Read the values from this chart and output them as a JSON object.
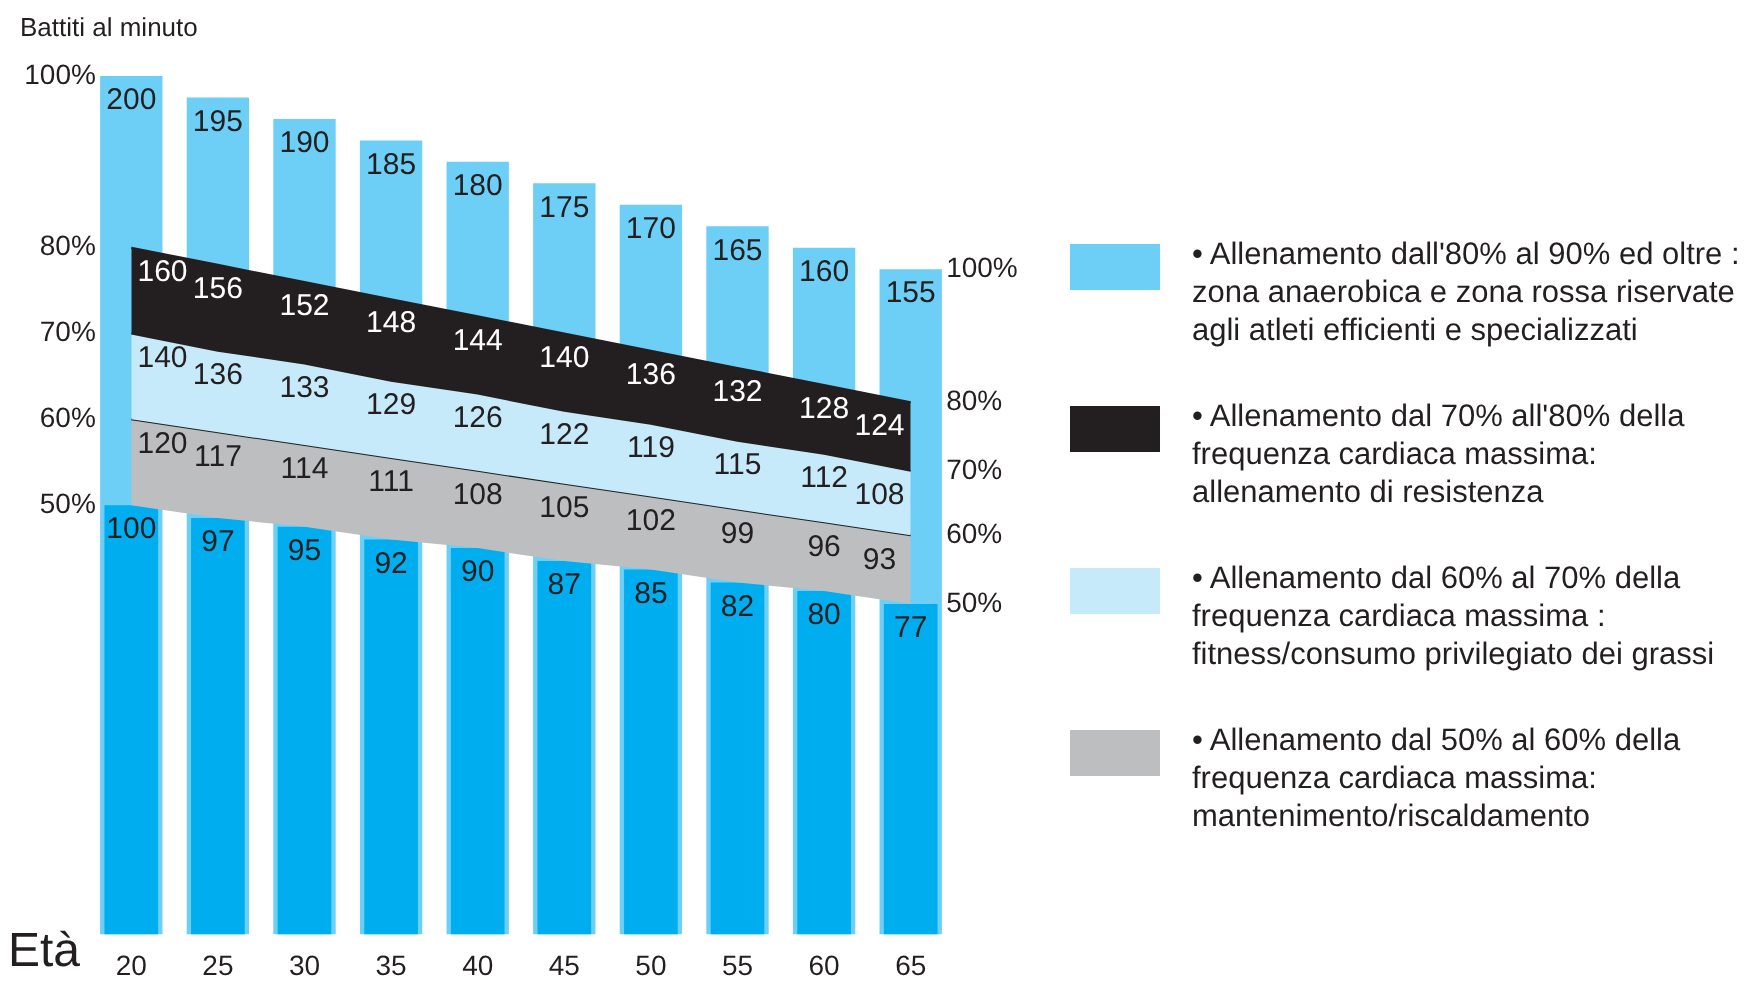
{
  "chart_data": {
    "type": "bar",
    "xlabel": "Età",
    "categories": [
      "20",
      "25",
      "30",
      "35",
      "40",
      "45",
      "50",
      "55",
      "60",
      "65"
    ],
    "series": [
      {
        "name": "• Allenamento dall'80% al 90% ed oltre : zona anaerobica e zona rossa riservate agli atleti efficienti e specializzati",
        "color": "#6dcff6",
        "values": [
          200,
          195,
          190,
          185,
          180,
          175,
          170,
          165,
          160,
          155
        ]
      },
      {
        "name": "• Allenamento dal 70% all'80% della frequenza cardiaca massima: allenamento di resistenza",
        "type": "area",
        "color": "#231f20",
        "values": [
          160,
          156,
          152,
          148,
          144,
          140,
          136,
          132,
          128,
          124
        ]
      },
      {
        "name": "• Allenamento dal 60% al 70% della frequenza cardiaca massima : fitness/consumo privilegiato dei grassi",
        "type": "area",
        "color": "#c7eafb",
        "values": [
          140,
          136,
          133,
          129,
          126,
          122,
          119,
          115,
          112,
          108
        ]
      },
      {
        "name": "• Allenamento dal 50% al 60% della frequenza cardiaca massima: mantenimento/riscaldamento",
        "type": "area",
        "color": "#bcbec0",
        "values": [
          120,
          117,
          114,
          111,
          108,
          105,
          102,
          99,
          96,
          93
        ]
      },
      {
        "color": "#00aeef",
        "values": [
          100,
          97,
          95,
          92,
          90,
          87,
          85,
          82,
          80,
          77
        ]
      }
    ],
    "annotations": [
      "Battiti al minuto",
      {
        "text": "100%",
        "x": "20",
        "y": 200
      },
      {
        "text": "80%",
        "x": "20",
        "y": 160
      },
      {
        "text": "70%",
        "x": "20",
        "y": 140
      },
      {
        "text": "60%",
        "x": "20",
        "y": 120
      },
      {
        "text": "50%",
        "x": "20",
        "y": 100
      },
      {
        "text": "100%",
        "x": "65",
        "y": 155
      },
      {
        "text": "80%",
        "x": "65",
        "y": 124
      },
      {
        "text": "70%",
        "x": "65",
        "y": 108
      },
      {
        "text": "60%",
        "x": "65",
        "y": 93
      },
      {
        "text": "50%",
        "x": "65",
        "y": 77
      }
    ],
    "data_labels": true,
    "grid": false,
    "legend": "right"
  }
}
